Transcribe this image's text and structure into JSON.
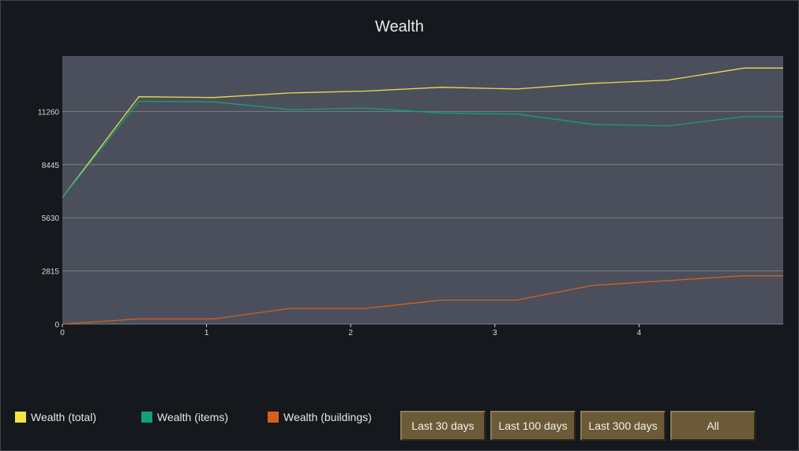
{
  "window": {
    "title": "Wealth"
  },
  "chart_data": {
    "type": "line",
    "title": "Wealth",
    "xlabel": "",
    "ylabel": "",
    "x": [
      0,
      0.53,
      1.05,
      1.58,
      2.1,
      2.63,
      3.15,
      3.68,
      4.2,
      4.73,
      5.0
    ],
    "xlim": [
      0,
      5.0
    ],
    "ylim": [
      0,
      14200
    ],
    "x_ticks": [
      "0",
      "1",
      "2",
      "3",
      "4"
    ],
    "y_ticks": [
      "0",
      "2815",
      "5630",
      "8445",
      "11260"
    ],
    "grid": true,
    "legend_placement": "bottom-left",
    "series": [
      {
        "name": "Wealth (total)",
        "color": "#e8de4a",
        "values": [
          6700,
          12040,
          12000,
          12240,
          12340,
          12540,
          12450,
          12750,
          12920,
          13560,
          13560
        ]
      },
      {
        "name": "Wealth (items)",
        "color": "#14a07a",
        "values": [
          6700,
          11800,
          11770,
          11360,
          11440,
          11180,
          11120,
          10580,
          10500,
          10990,
          10990
        ]
      },
      {
        "name": "Wealth (buildings)",
        "color": "#d0621e",
        "values": [
          0,
          270,
          270,
          830,
          830,
          1270,
          1270,
          2050,
          2300,
          2560,
          2560
        ]
      }
    ]
  },
  "legend": [
    {
      "label": "Wealth (total)",
      "color": "#f2e540"
    },
    {
      "label": "Wealth (items)",
      "color": "#13a078"
    },
    {
      "label": "Wealth (buildings)",
      "color": "#d8601c"
    }
  ],
  "buttons": {
    "last30": "Last 30 days",
    "last100": "Last 100 days",
    "last300": "Last 300 days",
    "all": "All"
  }
}
